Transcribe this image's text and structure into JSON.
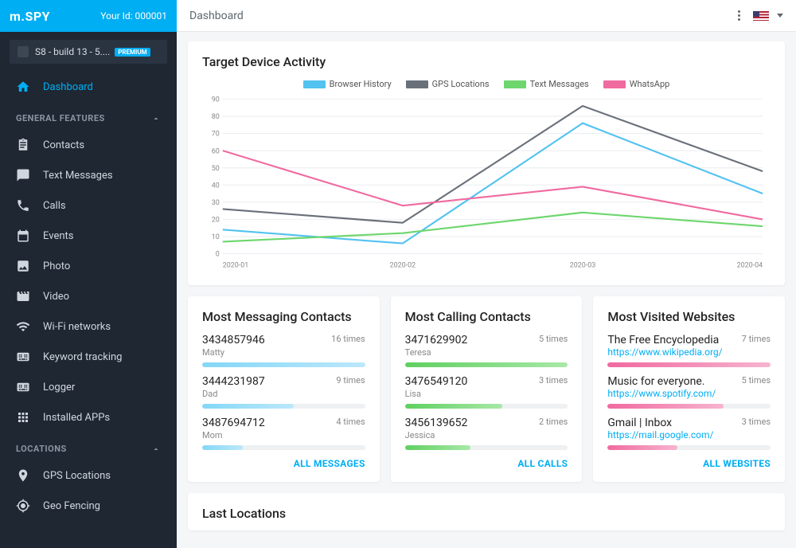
{
  "header": {
    "logo": "m.SPY",
    "userIdLabel": "Your Id: 000001",
    "pageTitle": "Dashboard"
  },
  "device": {
    "label": "S8 - build 13 - 5....",
    "badge": "PREMIUM"
  },
  "nav": {
    "dashboard": "Dashboard",
    "sectionGeneral": "GENERAL FEATURES",
    "items": [
      {
        "label": "Contacts",
        "icon": "clipboard"
      },
      {
        "label": "Text Messages",
        "icon": "chat"
      },
      {
        "label": "Calls",
        "icon": "phone"
      },
      {
        "label": "Events",
        "icon": "calendar"
      },
      {
        "label": "Photo",
        "icon": "image"
      },
      {
        "label": "Video",
        "icon": "video"
      },
      {
        "label": "Wi-Fi networks",
        "icon": "wifi"
      },
      {
        "label": "Keyword tracking",
        "icon": "keyboard"
      },
      {
        "label": "Logger",
        "icon": "keyboard"
      },
      {
        "label": "Installed APPs",
        "icon": "apps"
      }
    ],
    "sectionLocations": "LOCATIONS",
    "locationItems": [
      {
        "label": "GPS Locations",
        "icon": "pin"
      },
      {
        "label": "Geo Fencing",
        "icon": "target"
      }
    ]
  },
  "activityChart": {
    "title": "Target Device Activity",
    "type": "line",
    "background_color": "#ffffff",
    "grid_color": "#eceef1",
    "axis_color": "#aab1b9",
    "label_fontsize": 10,
    "ylim": [
      0,
      90
    ],
    "ytick_step": 10,
    "x_labels": [
      "2020-01",
      "2020-02",
      "2020-03",
      "2020-04"
    ],
    "series": [
      {
        "name": "Browser History",
        "color": "#52c2f0",
        "values": [
          14,
          6,
          76,
          35
        ]
      },
      {
        "name": "GPS Locations",
        "color": "#6a7079",
        "values": [
          26,
          18,
          86,
          48
        ]
      },
      {
        "name": "Text Messages",
        "color": "#6dd66d",
        "values": [
          7,
          12,
          24,
          16
        ]
      },
      {
        "name": "WhatsApp",
        "color": "#f06aa0",
        "values": [
          60,
          28,
          39,
          20
        ]
      }
    ],
    "line_width": 2
  },
  "messaging": {
    "title": "Most Messaging Contacts",
    "bar_gradient": [
      "#84d7f7",
      "#bce8fa"
    ],
    "max": 16,
    "items": [
      {
        "number": "3434857946",
        "name": "Matty",
        "times": 16,
        "times_label": "16 times"
      },
      {
        "number": "3444231987",
        "name": "Dad",
        "times": 9,
        "times_label": "9 times"
      },
      {
        "number": "3487694712",
        "name": "Mom",
        "times": 4,
        "times_label": "4 times"
      }
    ],
    "footer": "ALL MESSAGES"
  },
  "calling": {
    "title": "Most Calling Contacts",
    "bar_gradient": [
      "#5fd05f",
      "#a8e8a8"
    ],
    "max": 5,
    "items": [
      {
        "number": "3471629902",
        "name": "Teresa",
        "times": 5,
        "times_label": "5 times"
      },
      {
        "number": "3476549120",
        "name": "Lisa",
        "times": 3,
        "times_label": "3 times"
      },
      {
        "number": "3456139652",
        "name": "Jessica",
        "times": 2,
        "times_label": "2 times"
      }
    ],
    "footer": "ALL CALLS"
  },
  "websites": {
    "title": "Most Visited Websites",
    "bar_gradient": [
      "#f06aa0",
      "#f7b4cf"
    ],
    "max": 7,
    "items": [
      {
        "title": "The Free Encyclopedia",
        "url": "https://www.wikipedia.org/",
        "times": 7,
        "times_label": "7 times"
      },
      {
        "title": "Music for everyone.",
        "url": "https://www.spotify.com/",
        "times": 5,
        "times_label": "5 times"
      },
      {
        "title": "Gmail | Inbox",
        "url": "https://mail.google.com/",
        "times": 3,
        "times_label": "3 times"
      }
    ],
    "footer": "ALL WEBSITES"
  },
  "lastLocations": {
    "title": "Last Locations"
  },
  "colors": {
    "accent": "#00aef3",
    "sidebar_bg": "#1e2732",
    "page_bg": "#f5f6f8"
  }
}
